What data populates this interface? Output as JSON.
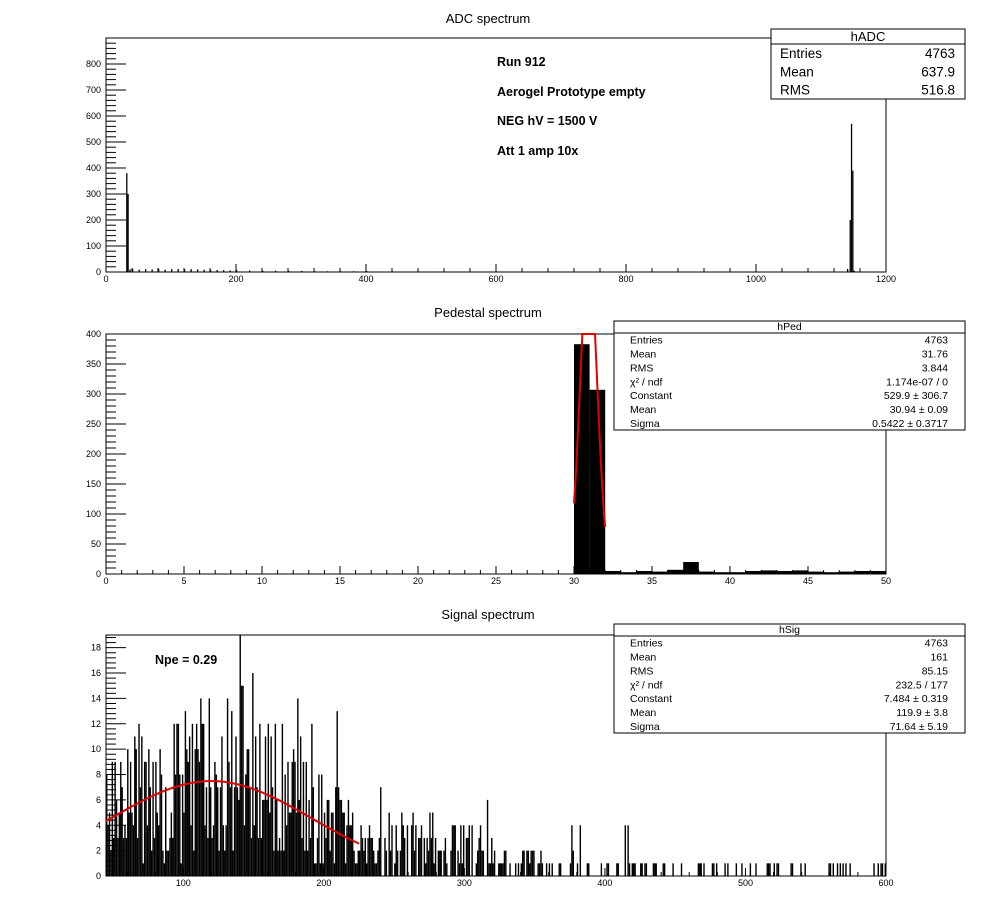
{
  "chart_data": [
    {
      "type": "bar",
      "title": "ADC spectrum",
      "xlim": [
        0,
        1200
      ],
      "ylim": [
        0,
        900
      ],
      "x_ticks": [
        0,
        200,
        400,
        600,
        800,
        1000,
        1200
      ],
      "y_ticks": [
        0,
        100,
        200,
        300,
        400,
        500,
        600,
        700,
        800
      ],
      "bars": [
        {
          "x": 31,
          "y": 380
        },
        {
          "x": 33,
          "y": 300
        },
        {
          "x": 36,
          "y": 10
        },
        {
          "x": 40,
          "y": 12
        },
        {
          "x": 50,
          "y": 9
        },
        {
          "x": 60,
          "y": 11
        },
        {
          "x": 70,
          "y": 10
        },
        {
          "x": 80,
          "y": 12
        },
        {
          "x": 90,
          "y": 9
        },
        {
          "x": 100,
          "y": 11
        },
        {
          "x": 110,
          "y": 12
        },
        {
          "x": 120,
          "y": 10
        },
        {
          "x": 130,
          "y": 11
        },
        {
          "x": 140,
          "y": 10
        },
        {
          "x": 150,
          "y": 9
        },
        {
          "x": 160,
          "y": 8
        },
        {
          "x": 170,
          "y": 8
        },
        {
          "x": 180,
          "y": 7
        },
        {
          "x": 190,
          "y": 6
        },
        {
          "x": 200,
          "y": 8
        },
        {
          "x": 220,
          "y": 6
        },
        {
          "x": 240,
          "y": 5
        },
        {
          "x": 260,
          "y": 5
        },
        {
          "x": 280,
          "y": 4
        },
        {
          "x": 300,
          "y": 4
        },
        {
          "x": 320,
          "y": 3
        },
        {
          "x": 340,
          "y": 3
        },
        {
          "x": 360,
          "y": 3
        },
        {
          "x": 380,
          "y": 3
        },
        {
          "x": 400,
          "y": 4
        },
        {
          "x": 420,
          "y": 2
        },
        {
          "x": 450,
          "y": 2
        },
        {
          "x": 480,
          "y": 2
        },
        {
          "x": 510,
          "y": 2
        },
        {
          "x": 540,
          "y": 2
        },
        {
          "x": 570,
          "y": 1
        },
        {
          "x": 600,
          "y": 2
        },
        {
          "x": 630,
          "y": 1
        },
        {
          "x": 660,
          "y": 1
        },
        {
          "x": 690,
          "y": 2
        },
        {
          "x": 720,
          "y": 1
        },
        {
          "x": 750,
          "y": 1
        },
        {
          "x": 780,
          "y": 1
        },
        {
          "x": 810,
          "y": 1
        },
        {
          "x": 840,
          "y": 1
        },
        {
          "x": 870,
          "y": 1
        },
        {
          "x": 900,
          "y": 1
        },
        {
          "x": 930,
          "y": 1
        },
        {
          "x": 960,
          "y": 1
        },
        {
          "x": 990,
          "y": 1
        },
        {
          "x": 1020,
          "y": 1
        },
        {
          "x": 1050,
          "y": 1
        },
        {
          "x": 1080,
          "y": 1
        },
        {
          "x": 1110,
          "y": 1
        },
        {
          "x": 1140,
          "y": 12
        },
        {
          "x": 1144,
          "y": 200
        },
        {
          "x": 1146,
          "y": 570
        },
        {
          "x": 1148,
          "y": 390
        },
        {
          "x": 1150,
          "y": 5
        }
      ],
      "bin_width": 2,
      "annotations": [
        "Run  912",
        "Aerogel Prototype empty",
        "NEG hV = 1500 V",
        "Att 1 amp 10x"
      ],
      "stats": {
        "name": "hADC",
        "rows": [
          {
            "label": "Entries",
            "value": "4763"
          },
          {
            "label": "Mean",
            "value": "637.9"
          },
          {
            "label": "RMS",
            "value": "516.8"
          }
        ]
      }
    },
    {
      "type": "bar",
      "title": "Pedestal spectrum",
      "xlim": [
        0,
        50
      ],
      "ylim": [
        0,
        400
      ],
      "x_ticks": [
        0,
        5,
        10,
        15,
        20,
        25,
        30,
        35,
        40,
        45,
        50
      ],
      "y_ticks": [
        0,
        50,
        100,
        150,
        200,
        250,
        300,
        350,
        400
      ],
      "bin_width": 1,
      "bars": [
        {
          "x": 30,
          "y": 383
        },
        {
          "x": 31,
          "y": 307
        },
        {
          "x": 32,
          "y": 5
        },
        {
          "x": 33,
          "y": 3
        },
        {
          "x": 34,
          "y": 5
        },
        {
          "x": 35,
          "y": 4
        },
        {
          "x": 36,
          "y": 7
        },
        {
          "x": 37,
          "y": 20
        },
        {
          "x": 38,
          "y": 4
        },
        {
          "x": 39,
          "y": 3
        },
        {
          "x": 40,
          "y": 3
        },
        {
          "x": 41,
          "y": 5
        },
        {
          "x": 42,
          "y": 6
        },
        {
          "x": 43,
          "y": 5
        },
        {
          "x": 44,
          "y": 6
        },
        {
          "x": 45,
          "y": 4
        },
        {
          "x": 46,
          "y": 3
        },
        {
          "x": 47,
          "y": 4
        },
        {
          "x": 48,
          "y": 5
        },
        {
          "x": 49,
          "y": 5
        }
      ],
      "fit": {
        "type": "gaus",
        "constant": 529.9,
        "mean": 30.94,
        "sigma": 0.5422,
        "range": [
          30,
          32
        ]
      },
      "stats": {
        "name": "hPed",
        "rows": [
          {
            "label": "Entries",
            "value": "4763"
          },
          {
            "label": "Mean",
            "value": "31.76"
          },
          {
            "label": "RMS",
            "value": "3.844"
          },
          {
            "label": "χ² / ndf",
            "value": "1.174e-07 / 0"
          },
          {
            "label": "Constant",
            "value": "529.9 ± 306.7"
          },
          {
            "label": "Mean",
            "value": "30.94 ± 0.09"
          },
          {
            "label": "Sigma",
            "value": "0.5422 ± 0.3717"
          }
        ]
      }
    },
    {
      "type": "bar",
      "title": "Signal spectrum",
      "xlim": [
        45,
        600
      ],
      "ylim": [
        0,
        19
      ],
      "x_ticks": [
        100,
        200,
        300,
        400,
        500,
        600
      ],
      "y_ticks": [
        0,
        2,
        4,
        6,
        8,
        10,
        12,
        14,
        16,
        18
      ],
      "bin_width": 1,
      "series_description": "noisy histogram, dense between 45 and 360, sparse tail up to 590",
      "fit": {
        "type": "gaus",
        "constant": 7.484,
        "mean": 119.9,
        "sigma": 71.64,
        "range": [
          45,
          225
        ]
      },
      "annotations": [
        "Npe = 0.29"
      ],
      "stats": {
        "name": "hSig",
        "rows": [
          {
            "label": "Entries",
            "value": "4763"
          },
          {
            "label": "Mean",
            "value": "161"
          },
          {
            "label": "RMS",
            "value": "85.15"
          },
          {
            "label": "χ² / ndf",
            "value": "232.5 / 177"
          },
          {
            "label": "Constant",
            "value": "7.484 ± 0.319"
          },
          {
            "label": "Mean",
            "value": "119.9 ± 3.8"
          },
          {
            "label": "Sigma",
            "value": "71.64 ± 5.19"
          }
        ]
      }
    }
  ]
}
